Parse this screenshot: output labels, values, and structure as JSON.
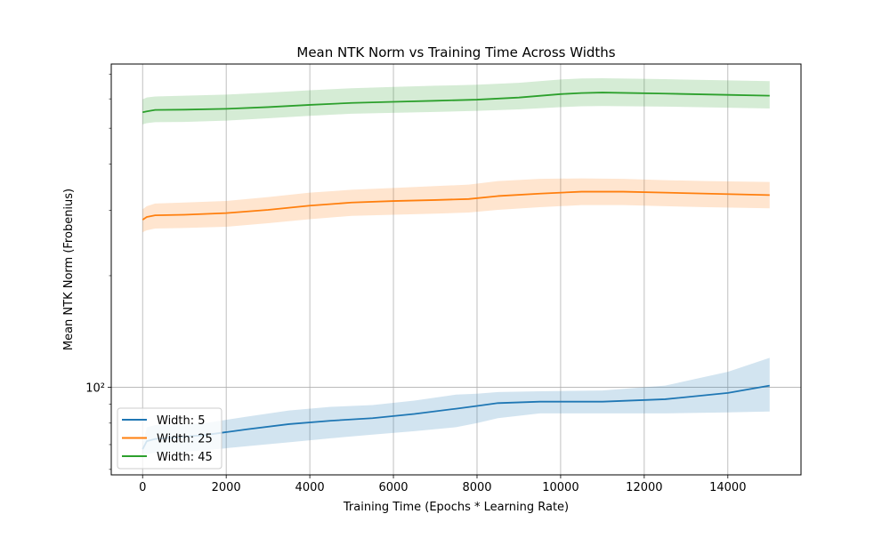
{
  "chart_data": {
    "type": "line",
    "title": "Mean NTK Norm vs Training Time Across Widths",
    "xlabel": "Training Time (Epochs * Learning Rate)",
    "ylabel": "Mean NTK Norm (Frobenius)",
    "yscale": "log",
    "xlim": [
      -750,
      15750
    ],
    "ylim": [
      58,
      745
    ],
    "xticks": [
      0,
      2000,
      4000,
      6000,
      8000,
      10000,
      12000,
      14000
    ],
    "xtick_labels": [
      "0",
      "2000",
      "4000",
      "6000",
      "8000",
      "10000",
      "12000",
      "14000"
    ],
    "ytick_major": [
      100
    ],
    "ytick_major_labels": [
      "10²"
    ],
    "ytick_minor": [
      60,
      70,
      80,
      90,
      200,
      300,
      400,
      500,
      600,
      700
    ],
    "grid": true,
    "legend_position": "lower-left",
    "series": [
      {
        "name": "Width: 5",
        "color": "#1f77b4",
        "x": [
          0,
          100,
          300,
          1000,
          1500,
          2500,
          3500,
          4500,
          5500,
          6500,
          7500,
          8000,
          8500,
          9500,
          11000,
          12500,
          14000,
          15000
        ],
        "mean": [
          68,
          71.5,
          72.5,
          73.5,
          74.3,
          77,
          79.5,
          81.2,
          82.5,
          84.7,
          87.5,
          89,
          90.6,
          91.4,
          91.4,
          92.8,
          96.5,
          101
        ],
        "lower": [
          66,
          66,
          66.5,
          67,
          67.6,
          69.3,
          71,
          72.8,
          74.5,
          76.1,
          78,
          80,
          82.5,
          85,
          85,
          85,
          85.5,
          86
        ],
        "upper": [
          70,
          78,
          79,
          79.5,
          80,
          83.3,
          86.5,
          88.5,
          89.5,
          92,
          95.5,
          96,
          97,
          97.5,
          98,
          101,
          110,
          120
        ]
      },
      {
        "name": "Width: 25",
        "color": "#ff7f0e",
        "x": [
          0,
          100,
          300,
          1000,
          2000,
          3000,
          4000,
          5000,
          6000,
          7000,
          7800,
          8500,
          9500,
          10500,
          11500,
          12500,
          13500,
          15000
        ],
        "mean": [
          283,
          288,
          291,
          292,
          295,
          301,
          309,
          315,
          318,
          320,
          322,
          328,
          333,
          337,
          337,
          335,
          333,
          330
        ],
        "lower": [
          262,
          265,
          268,
          269,
          271,
          277,
          284,
          290,
          292,
          294,
          296,
          301,
          306,
          310,
          310,
          308,
          306,
          304
        ],
        "upper": [
          302,
          308,
          313,
          315,
          318,
          326,
          335,
          341,
          345,
          349,
          352,
          360,
          365,
          366,
          365,
          362,
          360,
          358
        ]
      },
      {
        "name": "Width: 45",
        "color": "#2ca02c",
        "x": [
          0,
          100,
          300,
          1000,
          2000,
          3000,
          4000,
          5000,
          6000,
          7000,
          8000,
          9000,
          10000,
          10500,
          11000,
          12500,
          14000,
          15000
        ],
        "mean": [
          552,
          555,
          560,
          561,
          564,
          570,
          578,
          585,
          589,
          593,
          597,
          605,
          618,
          622,
          624,
          620,
          615,
          612
        ],
        "lower": [
          512,
          516,
          519,
          520,
          524,
          532,
          540,
          547,
          550,
          553,
          557,
          562,
          570,
          573,
          574,
          572,
          568,
          565
        ],
        "upper": [
          598,
          605,
          609,
          612,
          616,
          624,
          633,
          641,
          646,
          651,
          655,
          663,
          677,
          681,
          682,
          678,
          673,
          670
        ]
      }
    ]
  }
}
